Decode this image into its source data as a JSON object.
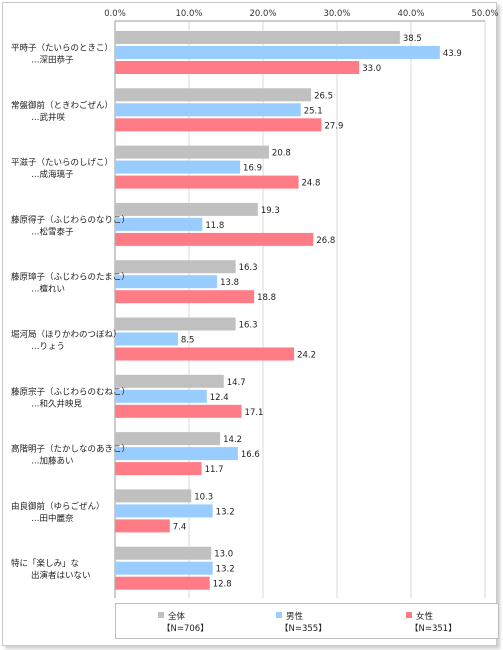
{
  "chart_data": {
    "type": "bar",
    "orientation": "horizontal",
    "categories": [
      [
        "平時子（たいらのときこ）",
        "…深田恭子"
      ],
      [
        "常盤御前（ときわごぜん）",
        "…武井咲"
      ],
      [
        "平滋子（たいらのしげこ）",
        "…成海璃子"
      ],
      [
        "藤原得子（ふじわらのなりこ）",
        "…松雪泰子"
      ],
      [
        "藤原璋子（ふじわらのたまこ）",
        "…檀れい"
      ],
      [
        "堀河局（ほりかわのつぼね）",
        "…りょう"
      ],
      [
        "藤原宗子（ふじわらのむねこ）",
        "…和久井映見"
      ],
      [
        "高階明子（たかしなのあきこ）",
        "…加藤あい"
      ],
      [
        "由良御前（ゆらごぜん）",
        "…田中麗奈"
      ],
      [
        "特に「楽しみ」な",
        "出演者はいない"
      ]
    ],
    "series": [
      {
        "name": "全体",
        "n_label": "【N=706】",
        "color": "#c0c0c0",
        "values": [
          38.5,
          26.5,
          20.8,
          19.3,
          16.3,
          16.3,
          14.7,
          14.2,
          10.3,
          13.0
        ]
      },
      {
        "name": "男性",
        "n_label": "【N=355】",
        "color": "#99ccff",
        "values": [
          43.9,
          25.1,
          16.9,
          11.8,
          13.8,
          8.5,
          12.4,
          16.6,
          13.2,
          13.2
        ]
      },
      {
        "name": "女性",
        "n_label": "【N=351】",
        "color": "#ff7b86",
        "values": [
          33.0,
          27.9,
          24.8,
          26.8,
          18.8,
          24.2,
          17.1,
          11.7,
          7.4,
          12.8
        ]
      }
    ],
    "xlim": [
      0,
      50
    ],
    "xticks": [
      "0.0%",
      "10.0%",
      "20.0%",
      "30.0%",
      "40.0%",
      "50.0%"
    ],
    "grid": true,
    "legend_position": "bottom"
  }
}
